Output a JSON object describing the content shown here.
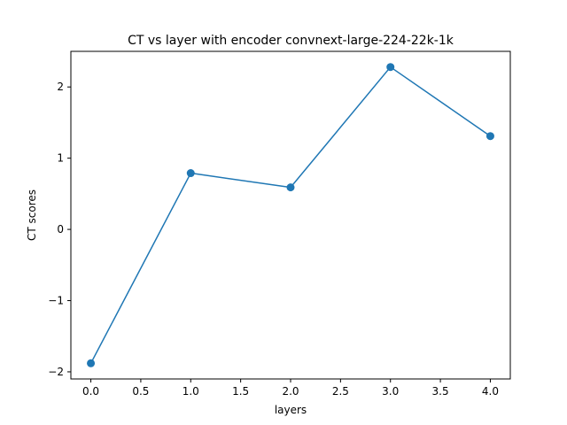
{
  "chart_data": {
    "type": "line",
    "title": "CT vs layer with encoder convnext-large-224-22k-1k",
    "xlabel": "layers",
    "ylabel": "CT scores",
    "x": [
      0,
      1,
      2,
      3,
      4
    ],
    "series": [
      {
        "values": [
          -1.88,
          0.79,
          0.59,
          2.28,
          1.31
        ],
        "color": "#1f77b4",
        "marker": "circle"
      }
    ],
    "xlim": [
      -0.2,
      4.2
    ],
    "ylim": [
      -2.1,
      2.5
    ],
    "xticks": [
      0.0,
      0.5,
      1.0,
      1.5,
      2.0,
      2.5,
      3.0,
      3.5,
      4.0
    ],
    "xtick_labels": [
      "0.0",
      "0.5",
      "1.0",
      "1.5",
      "2.0",
      "2.5",
      "3.0",
      "3.5",
      "4.0"
    ],
    "yticks": [
      -2,
      -1,
      0,
      1,
      2
    ],
    "ytick_labels": [
      "−2",
      "−1",
      "0",
      "1",
      "2"
    ],
    "grid": false,
    "legend": "none"
  }
}
